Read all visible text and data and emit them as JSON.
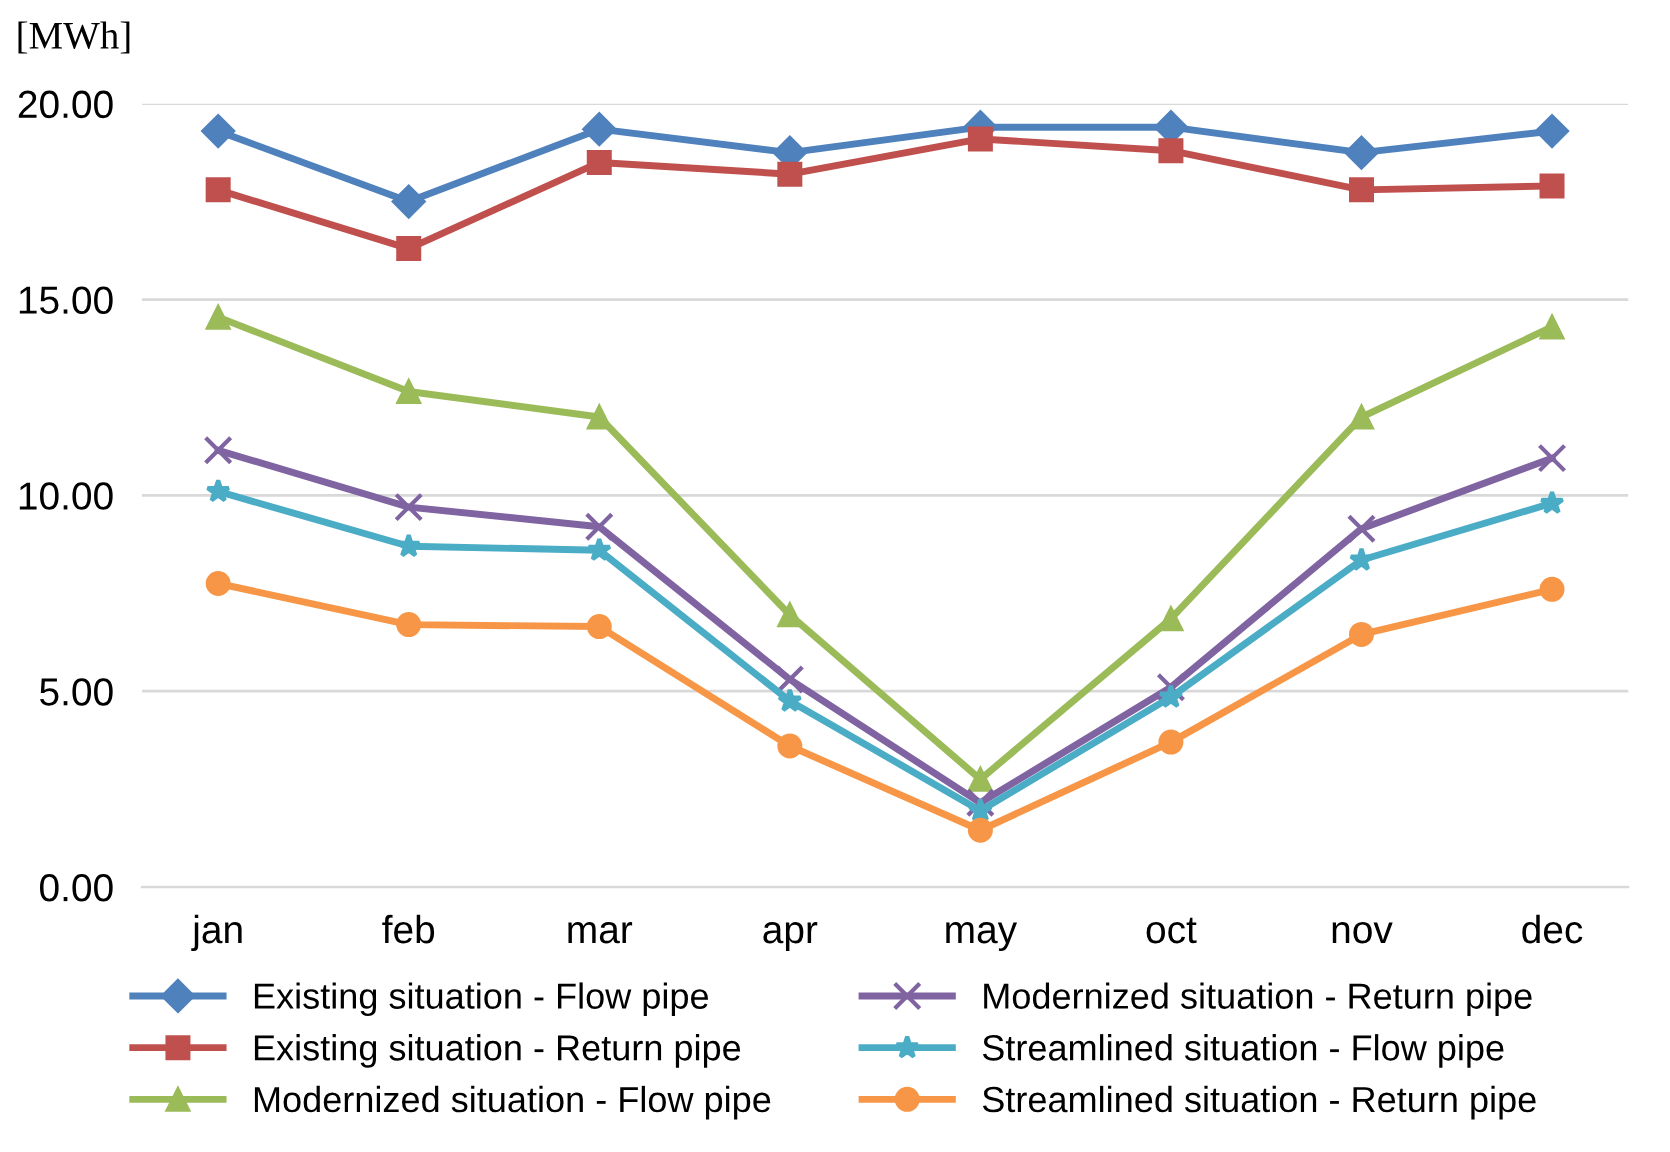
{
  "chart_data": {
    "type": "line",
    "ylabel": "[MWh]",
    "categories": [
      "jan",
      "feb",
      "mar",
      "apr",
      "may",
      "oct",
      "nov",
      "dec"
    ],
    "ylim": [
      0,
      20
    ],
    "yticks": [
      {
        "value": 0,
        "label": "0.00"
      },
      {
        "value": 5,
        "label": "5.00"
      },
      {
        "value": 10,
        "label": "10.00"
      },
      {
        "value": 15,
        "label": "15.00"
      },
      {
        "value": 20,
        "label": "20.00"
      }
    ],
    "grid": "y",
    "legend": "bottom",
    "line_style": "solid",
    "series": [
      {
        "name": "Existing situation - Flow pipe",
        "color": "#4f81bd",
        "marker": "diamond",
        "values": [
          19.3,
          17.5,
          19.35,
          18.75,
          19.4,
          19.4,
          18.75,
          19.3
        ]
      },
      {
        "name": "Existing situation - Return pipe",
        "color": "#c0504d",
        "marker": "square",
        "values": [
          17.8,
          16.3,
          18.5,
          18.2,
          19.1,
          18.8,
          17.8,
          17.9
        ]
      },
      {
        "name": "Modernized situation - Flow pipe",
        "color": "#9bbb59",
        "marker": "triangle",
        "values": [
          14.55,
          12.65,
          12.0,
          6.95,
          2.75,
          6.85,
          12.0,
          14.3
        ]
      },
      {
        "name": "Modernized situation - Return pipe",
        "color": "#8064a2",
        "marker": "cross",
        "values": [
          11.15,
          9.7,
          9.2,
          5.3,
          2.15,
          5.1,
          9.15,
          10.95
        ]
      },
      {
        "name": "Streamlined situation - Flow pipe",
        "color": "#4bacc6",
        "marker": "star",
        "values": [
          10.1,
          8.7,
          8.6,
          4.75,
          1.95,
          4.85,
          8.35,
          9.8
        ]
      },
      {
        "name": "Streamlined situation - Return pipe",
        "color": "#f79646",
        "marker": "circle",
        "values": [
          7.75,
          6.7,
          6.65,
          3.6,
          1.45,
          3.7,
          6.45,
          7.6
        ]
      }
    ]
  }
}
